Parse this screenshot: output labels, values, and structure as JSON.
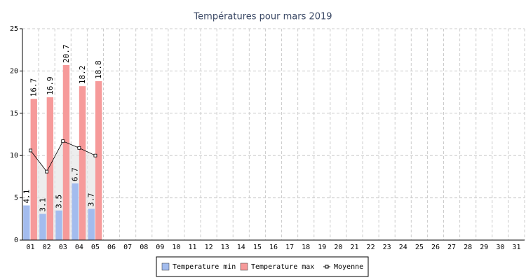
{
  "chart_data": {
    "type": "bar",
    "title": "Températures pour mars 2019",
    "categories": [
      "01",
      "02",
      "03",
      "04",
      "05",
      "06",
      "07",
      "08",
      "09",
      "10",
      "11",
      "12",
      "13",
      "14",
      "15",
      "16",
      "17",
      "18",
      "19",
      "20",
      "21",
      "22",
      "23",
      "24",
      "25",
      "26",
      "27",
      "28",
      "29",
      "30",
      "31"
    ],
    "series": [
      {
        "name": "Temperature min",
        "color": "#a3bcee",
        "values": [
          4.1,
          3.1,
          3.5,
          6.7,
          3.7,
          null,
          null,
          null,
          null,
          null,
          null,
          null,
          null,
          null,
          null,
          null,
          null,
          null,
          null,
          null,
          null,
          null,
          null,
          null,
          null,
          null,
          null,
          null,
          null,
          null,
          null
        ]
      },
      {
        "name": "Temperature max",
        "color": "#f69a9a",
        "values": [
          16.7,
          16.9,
          20.7,
          18.2,
          18.8,
          null,
          null,
          null,
          null,
          null,
          null,
          null,
          null,
          null,
          null,
          null,
          null,
          null,
          null,
          null,
          null,
          null,
          null,
          null,
          null,
          null,
          null,
          null,
          null,
          null,
          null
        ]
      },
      {
        "name": "Moyenne",
        "type": "line",
        "color": "#000000",
        "values": [
          10.6,
          8.1,
          11.7,
          10.9,
          10.0,
          null,
          null,
          null,
          null,
          null,
          null,
          null,
          null,
          null,
          null,
          null,
          null,
          null,
          null,
          null,
          null,
          null,
          null,
          null,
          null,
          null,
          null,
          null,
          null,
          null,
          null
        ]
      }
    ],
    "ylim": [
      0,
      25
    ],
    "yticks": [
      0,
      5,
      10,
      15,
      20,
      25
    ],
    "grid": true,
    "legend": "bottom"
  }
}
